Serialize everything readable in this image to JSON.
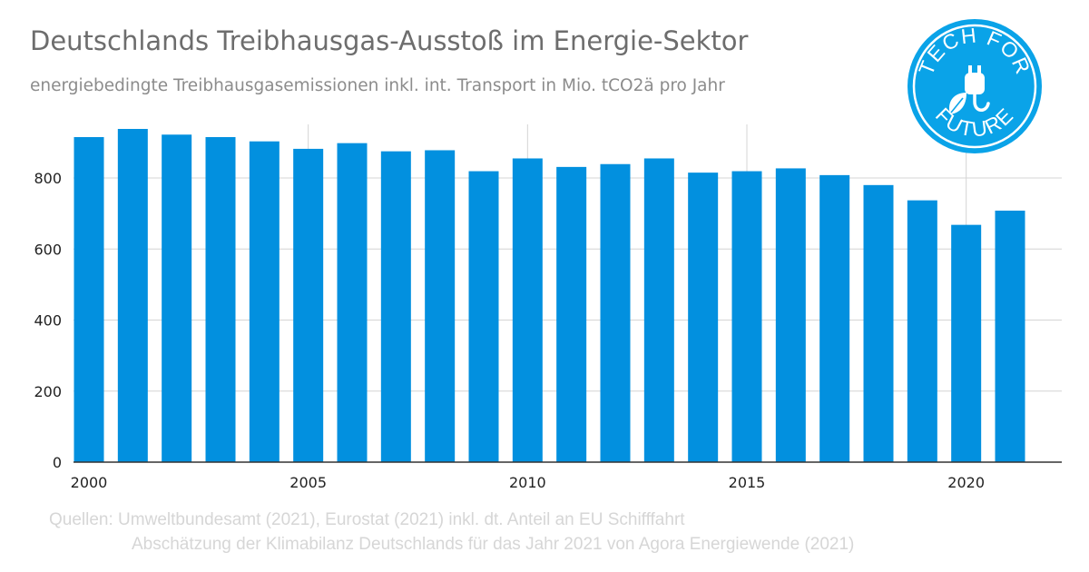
{
  "title": "Deutschlands Treibhausgas-Ausstoß im Energie-Sektor",
  "subtitle": "energiebedingte Treibhausgasemissionen inkl. int. Transport in Mio. tCO2ä pro Jahr",
  "sources": {
    "line1": "Quellen: Umweltbundesamt (2021), Eurostat (2021) inkl. dt. Anteil an EU Schifffahrt",
    "line2": "Abschätzung der Klimabilanz Deutschlands für das Jahr 2021 von Agora Energiewende (2021)"
  },
  "logo": {
    "text_top": "TECH FOR",
    "text_bottom": "FUTURE",
    "icon": "plug-leaf-icon",
    "color": "#0aa3e8"
  },
  "colors": {
    "bar": "#0290df",
    "grid": "#d4d4d4",
    "axis": "#333333",
    "tick_text": "#222222"
  },
  "chart_data": {
    "type": "bar",
    "categories": [
      "2000",
      "2001",
      "2002",
      "2003",
      "2004",
      "2005",
      "2006",
      "2007",
      "2008",
      "2009",
      "2010",
      "2011",
      "2012",
      "2013",
      "2014",
      "2015",
      "2016",
      "2017",
      "2018",
      "2019",
      "2020",
      "2021"
    ],
    "values": [
      915,
      938,
      922,
      915,
      903,
      882,
      898,
      875,
      878,
      819,
      855,
      831,
      839,
      855,
      815,
      819,
      827,
      808,
      780,
      737,
      668,
      708
    ],
    "x_tick_labels": [
      "2000",
      "2005",
      "2010",
      "2015",
      "2020"
    ],
    "y_ticks": [
      0,
      200,
      400,
      600,
      800
    ],
    "ylim": [
      0,
      950
    ],
    "title": "Deutschlands Treibhausgas-Ausstoß im Energie-Sektor",
    "xlabel": "",
    "ylabel": "",
    "grid": true,
    "legend": "none"
  }
}
